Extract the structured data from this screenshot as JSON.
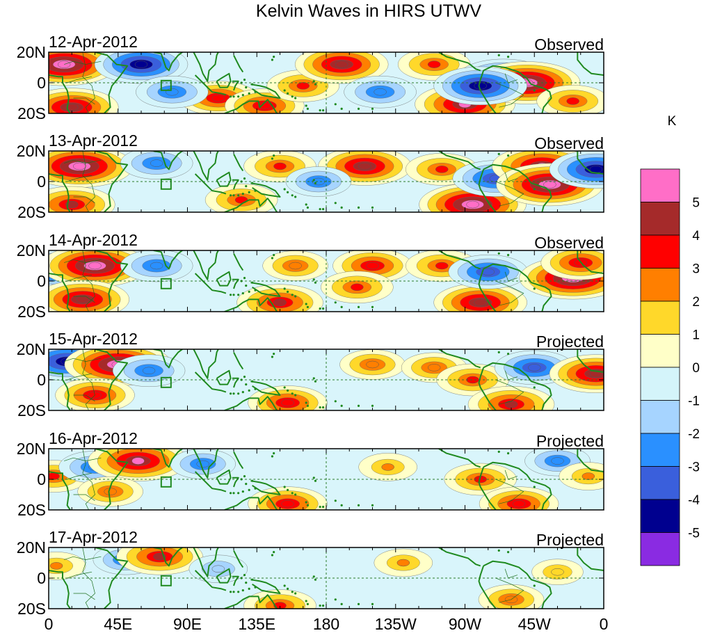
{
  "chart_data": {
    "type": "heatmap",
    "title": "Kelvin Waves in HIRS UTWV",
    "units": "K",
    "xlabel": "",
    "ylabel": "",
    "x_tick_labels": [
      "0",
      "45E",
      "90E",
      "135E",
      "180",
      "135W",
      "90W",
      "45W",
      "0"
    ],
    "x_ticks_deg_east": [
      0,
      45,
      90,
      135,
      180,
      225,
      270,
      315,
      360
    ],
    "xlim": [
      0,
      360
    ],
    "y_tick_labels": [
      "20N",
      "0",
      "20S"
    ],
    "y_ticks_deg": [
      20,
      0,
      -20
    ],
    "ylim": [
      -20,
      20
    ],
    "reference_lines": {
      "equator_lat": 0,
      "dateline_lon": 180
    },
    "panels": [
      {
        "date": "12-Apr-2012",
        "kind": "Observed",
        "anomalies": [
          {
            "lon": 10,
            "lat": 12,
            "value": 5.5
          },
          {
            "lon": 15,
            "lat": -16,
            "value": 4.5
          },
          {
            "lon": 60,
            "lat": 12,
            "value": -4.5
          },
          {
            "lon": 110,
            "lat": -10,
            "value": 3.5
          },
          {
            "lon": 140,
            "lat": -15,
            "value": 3.5
          },
          {
            "lon": 165,
            "lat": -2,
            "value": 3
          },
          {
            "lon": 190,
            "lat": 12,
            "value": 4.5
          },
          {
            "lon": 250,
            "lat": 12,
            "value": 3
          },
          {
            "lon": 270,
            "lat": -14,
            "value": 5
          },
          {
            "lon": 295,
            "lat": 3,
            "value": -4.5
          },
          {
            "lon": 310,
            "lat": 0,
            "value": 5.5
          },
          {
            "lon": 280,
            "lat": -2,
            "value": -4.5
          },
          {
            "lon": 340,
            "lat": -12,
            "value": 3
          },
          {
            "lon": 80,
            "lat": -6,
            "value": -3
          },
          {
            "lon": 215,
            "lat": -6,
            "value": -3
          }
        ]
      },
      {
        "date": "13-Apr-2012",
        "kind": "Observed",
        "anomalies": [
          {
            "lon": 20,
            "lat": 10,
            "value": 5.5
          },
          {
            "lon": 15,
            "lat": -15,
            "value": 4
          },
          {
            "lon": 70,
            "lat": 12,
            "value": -3
          },
          {
            "lon": 125,
            "lat": -12,
            "value": 3
          },
          {
            "lon": 150,
            "lat": 10,
            "value": 3
          },
          {
            "lon": 205,
            "lat": 10,
            "value": 4.5
          },
          {
            "lon": 255,
            "lat": 8,
            "value": 3
          },
          {
            "lon": 275,
            "lat": -15,
            "value": 5.5
          },
          {
            "lon": 290,
            "lat": 2,
            "value": -4
          },
          {
            "lon": 320,
            "lat": 10,
            "value": 5
          },
          {
            "lon": 325,
            "lat": -2,
            "value": 5.5
          },
          {
            "lon": 355,
            "lat": 8,
            "value": -4.5
          },
          {
            "lon": 175,
            "lat": 0,
            "value": -2.5
          }
        ]
      },
      {
        "date": "14-Apr-2012",
        "kind": "Observed",
        "anomalies": [
          {
            "lon": 4,
            "lat": 8,
            "value": -4.5
          },
          {
            "lon": 30,
            "lat": 10,
            "value": 5.5
          },
          {
            "lon": 22,
            "lat": -12,
            "value": 4.5
          },
          {
            "lon": 70,
            "lat": 10,
            "value": -3
          },
          {
            "lon": 150,
            "lat": -14,
            "value": 4
          },
          {
            "lon": 160,
            "lat": 10,
            "value": 2.5
          },
          {
            "lon": 210,
            "lat": 10,
            "value": 3.5
          },
          {
            "lon": 200,
            "lat": -4,
            "value": 3
          },
          {
            "lon": 255,
            "lat": 10,
            "value": 3
          },
          {
            "lon": 280,
            "lat": -14,
            "value": 4.5
          },
          {
            "lon": 285,
            "lat": 6,
            "value": -3.5
          },
          {
            "lon": 340,
            "lat": 2,
            "value": 5.5
          },
          {
            "lon": 345,
            "lat": 12,
            "value": 3.5
          }
        ]
      },
      {
        "date": "15-Apr-2012",
        "kind": "Projected",
        "anomalies": [
          {
            "lon": 12,
            "lat": 12,
            "value": -4.5
          },
          {
            "lon": 45,
            "lat": 10,
            "value": 5.5
          },
          {
            "lon": 30,
            "lat": -10,
            "value": 3.5
          },
          {
            "lon": 65,
            "lat": 6,
            "value": -3
          },
          {
            "lon": 155,
            "lat": -15,
            "value": 3.5
          },
          {
            "lon": 210,
            "lat": 10,
            "value": 2.5
          },
          {
            "lon": 250,
            "lat": 8,
            "value": 2.5
          },
          {
            "lon": 275,
            "lat": 0,
            "value": 3
          },
          {
            "lon": 300,
            "lat": -16,
            "value": 4
          },
          {
            "lon": 315,
            "lat": 8,
            "value": -3.5
          },
          {
            "lon": 355,
            "lat": 4,
            "value": 4.5
          }
        ]
      },
      {
        "date": "16-Apr-2012",
        "kind": "Projected",
        "anomalies": [
          {
            "lon": 3,
            "lat": 2,
            "value": 3
          },
          {
            "lon": 30,
            "lat": 8,
            "value": -3
          },
          {
            "lon": 58,
            "lat": 12,
            "value": 5
          },
          {
            "lon": 40,
            "lat": -8,
            "value": 2.5
          },
          {
            "lon": 155,
            "lat": -16,
            "value": 3.5
          },
          {
            "lon": 100,
            "lat": 10,
            "value": -2.5
          },
          {
            "lon": 220,
            "lat": 8,
            "value": 2
          },
          {
            "lon": 280,
            "lat": 0,
            "value": 3
          },
          {
            "lon": 305,
            "lat": -16,
            "value": 3.5
          },
          {
            "lon": 330,
            "lat": 12,
            "value": -2.5
          },
          {
            "lon": 350,
            "lat": 2,
            "value": 2
          }
        ]
      },
      {
        "date": "17-Apr-2012",
        "kind": "Projected",
        "anomalies": [
          {
            "lon": 5,
            "lat": 8,
            "value": 2
          },
          {
            "lon": 50,
            "lat": 12,
            "value": -2.5
          },
          {
            "lon": 72,
            "lat": 14,
            "value": 4
          },
          {
            "lon": 150,
            "lat": -18,
            "value": 3
          },
          {
            "lon": 230,
            "lat": 10,
            "value": 2
          },
          {
            "lon": 300,
            "lat": -14,
            "value": 2.5
          },
          {
            "lon": 330,
            "lat": 4,
            "value": 1.5
          },
          {
            "lon": 110,
            "lat": 6,
            "value": -2
          }
        ]
      }
    ],
    "colorbar": {
      "levels": [
        5,
        4,
        3,
        2,
        1,
        0,
        -1,
        -2,
        -3,
        -4,
        -5
      ],
      "labels": [
        "5",
        "4",
        "3",
        "2",
        "1",
        "0",
        "-1",
        "-2",
        "-3",
        "-4",
        "-5"
      ],
      "colors": [
        "#ff6ec7",
        "#a52a2a",
        "#ff0000",
        "#ff7f00",
        "#ffd82a",
        "#ffffc8",
        "#d4f4fa",
        "#a6d4ff",
        "#2a90ff",
        "#3a5fdc",
        "#00008f",
        "#8a2be2"
      ]
    }
  }
}
